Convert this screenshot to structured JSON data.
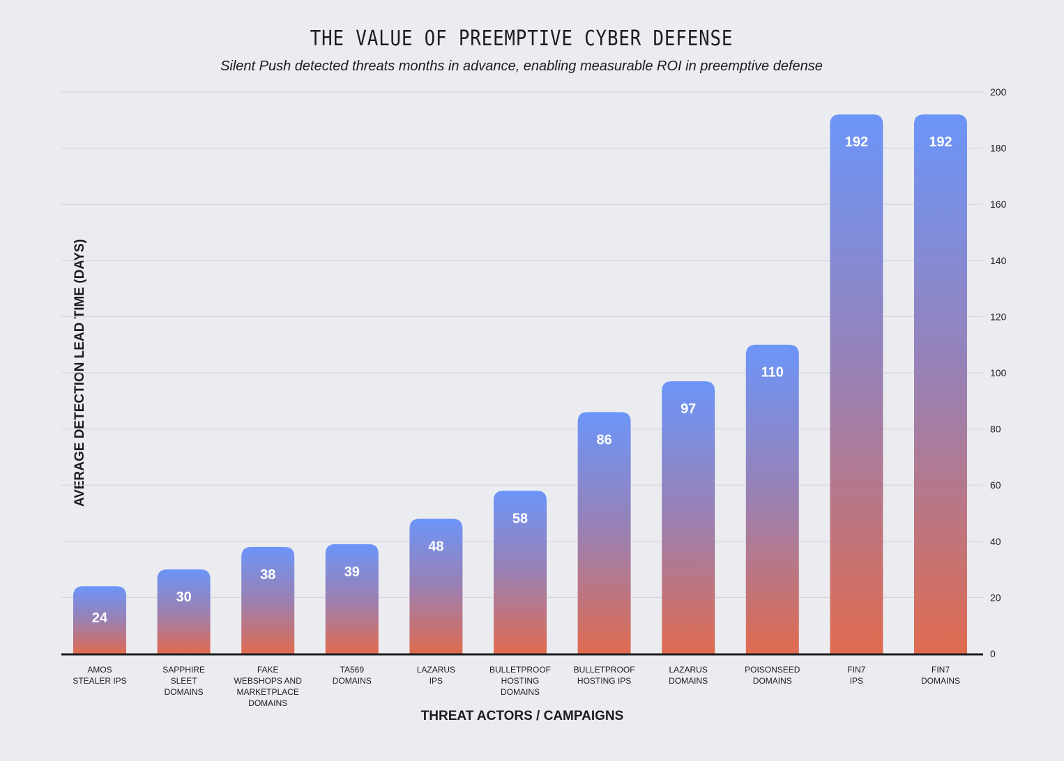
{
  "chart_data": {
    "type": "bar",
    "title": "THE VALUE OF PREEMPTIVE CYBER DEFENSE",
    "subtitle": "Silent Push detected threats months in advance, enabling measurable ROI in preemptive defense",
    "xlabel": "THREAT ACTORS / CAMPAIGNS",
    "ylabel": "AVERAGE DETECTION LEAD TIME (DAYS)",
    "ylim": [
      0,
      200
    ],
    "yticks": [
      0,
      20,
      40,
      60,
      80,
      100,
      120,
      140,
      160,
      180,
      200
    ],
    "y_axis_side": "right",
    "grid": true,
    "legend": "none",
    "categories": [
      "AMOS\nSTEALER IPS",
      "SAPPHIRE\nSLEET\nDOMAINS",
      "FAKE\nWEBSHOPS AND\nMARKETPLACE\nDOMAINS",
      "TA569\nDOMAINS",
      "LAZARUS\nIPS",
      "BULLETPROOF\nHOSTING\nDOMAINS",
      "BULLETPROOF\nHOSTING IPS",
      "LAZARUS\nDOMAINS",
      "POISONSEED\nDOMAINS",
      "FIN7\nIPS",
      "FIN7\nDOMAINS"
    ],
    "values": [
      24,
      30,
      38,
      39,
      48,
      58,
      86,
      97,
      110,
      192,
      192
    ],
    "data_labels": [
      "24",
      "30",
      "38",
      "39",
      "48",
      "58",
      "86",
      "97",
      "110",
      "192",
      "192"
    ],
    "colors": {
      "bar_top": "#6c95f9",
      "bar_mid": "#9a80b2",
      "bar_bottom": "#e06b50",
      "gridline": "#d3d5da",
      "baseline": "#1b1c20",
      "background": "#ebecf0",
      "text": "#1b1c20",
      "data_label": "#ffffff"
    }
  }
}
